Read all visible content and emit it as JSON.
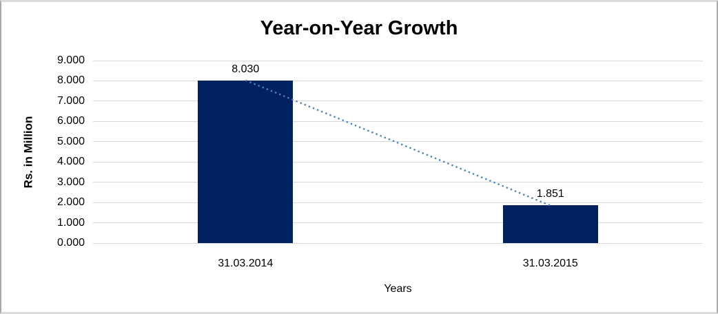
{
  "chart_data": {
    "type": "bar",
    "title": "Year-on-Year Growth",
    "categories": [
      "31.03.2014",
      "31.03.2015"
    ],
    "values": [
      8.03,
      1.851
    ],
    "data_labels": [
      "8.030",
      "1.851"
    ],
    "xlabel": "Years",
    "ylabel": "Rs. in Million",
    "ylim": [
      0,
      9
    ],
    "ytick_step": 1,
    "ytick_labels": [
      "0.000",
      "1.000",
      "2.000",
      "3.000",
      "4.000",
      "5.000",
      "6.000",
      "7.000",
      "8.000",
      "9.000"
    ],
    "grid": true,
    "legend": "none",
    "colors": {
      "bar": "#002060",
      "trendline": "#4f81bd",
      "gridline": "#d9d9d9",
      "text": "#000000"
    },
    "trendline": {
      "style": "dotted",
      "connects": [
        "top of 31.03.2014 bar",
        "top of 31.03.2015 bar"
      ]
    }
  }
}
